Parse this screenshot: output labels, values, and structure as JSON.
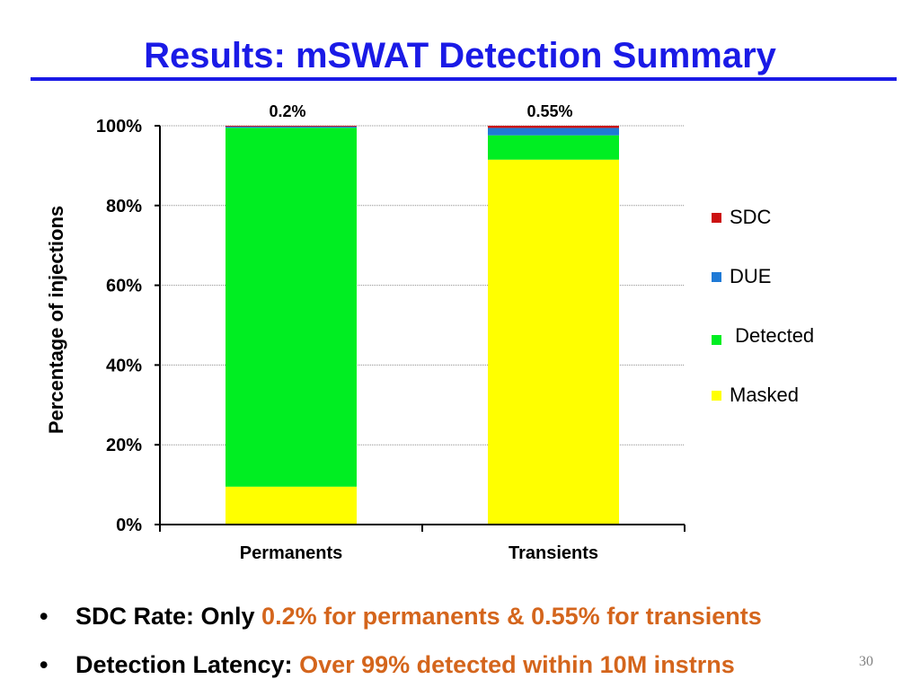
{
  "slide": {
    "title": "Results: mSWAT Detection Summary",
    "page_number": "30"
  },
  "chart_data": {
    "type": "bar",
    "stacked": true,
    "percent": true,
    "categories": [
      "Permanents",
      "Transients"
    ],
    "series": [
      {
        "name": "Masked",
        "color": "#ffff00",
        "values": [
          9.5,
          91.5
        ]
      },
      {
        "name": "Detected",
        "color": "#00ee22",
        "values": [
          90.0,
          6.1
        ]
      },
      {
        "name": "DUE",
        "color": "#1f7ad6",
        "values": [
          0.3,
          1.85
        ]
      },
      {
        "name": "SDC",
        "color": "#cc1111",
        "values": [
          0.2,
          0.55
        ]
      }
    ],
    "data_labels": [
      "0.2%",
      "0.55%"
    ],
    "ylabel": "Percentage of injections",
    "xlabel": "",
    "ylim": [
      0,
      100
    ],
    "yticks": [
      "0%",
      "20%",
      "40%",
      "60%",
      "80%",
      "100%"
    ],
    "grid": true,
    "legend_position": "right"
  },
  "legend": [
    {
      "label": "SDC",
      "color": "#cc1111"
    },
    {
      "label": "DUE",
      "color": "#1f7ad6"
    },
    {
      "label": " Detected",
      "color": "#00ee22"
    },
    {
      "label": "Masked",
      "color": "#ffff00"
    }
  ],
  "bullets": [
    {
      "lead": "SDC Rate: Only ",
      "highlight": "0.2% for permanents & 0.55% for transients"
    },
    {
      "lead": "Detection Latency: ",
      "highlight": "Over 99% detected within 10M instrns"
    }
  ]
}
